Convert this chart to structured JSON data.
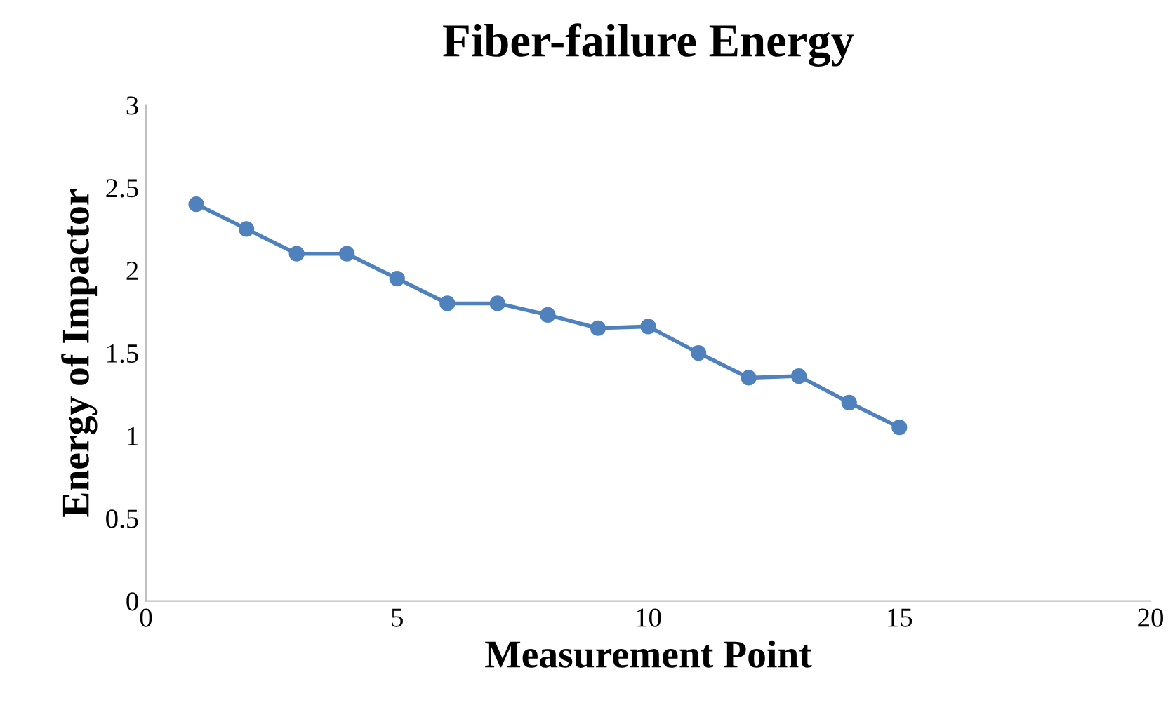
{
  "chart_data": {
    "type": "line",
    "title": "Fiber-failure Energy",
    "xlabel": "Measurement Point",
    "ylabel": "Energy of Impactor",
    "x": [
      1,
      2,
      3,
      4,
      5,
      6,
      7,
      8,
      9,
      10,
      11,
      12,
      13,
      14,
      15
    ],
    "series": [
      {
        "color": "#4f81bd",
        "values": [
          2.4,
          2.25,
          2.1,
          2.1,
          1.95,
          1.8,
          1.8,
          1.73,
          1.65,
          1.66,
          1.5,
          1.35,
          1.36,
          1.2,
          1.05
        ]
      }
    ],
    "xlim": [
      0,
      20
    ],
    "xticks": [
      0,
      5,
      10,
      15,
      20
    ],
    "ylim": [
      0,
      3
    ],
    "yticks": [
      0,
      0.5,
      1,
      1.5,
      2,
      2.5,
      3
    ],
    "grid": false,
    "legend": false,
    "marker": "circle",
    "line_style": "solid"
  }
}
